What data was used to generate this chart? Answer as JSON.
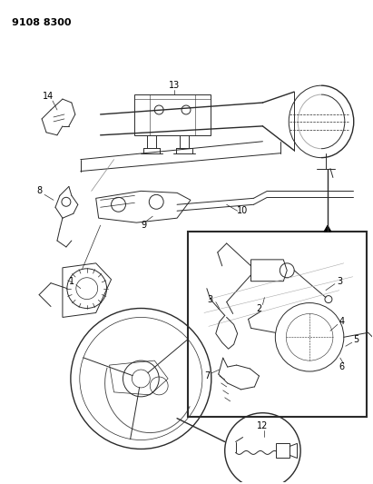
{
  "title": "9108 8300",
  "background_color": "#ffffff",
  "line_color": "#2a2a2a",
  "figsize": [
    4.11,
    5.33
  ],
  "dpi": 100,
  "gray": "#888888",
  "light_gray": "#bbbbbb"
}
